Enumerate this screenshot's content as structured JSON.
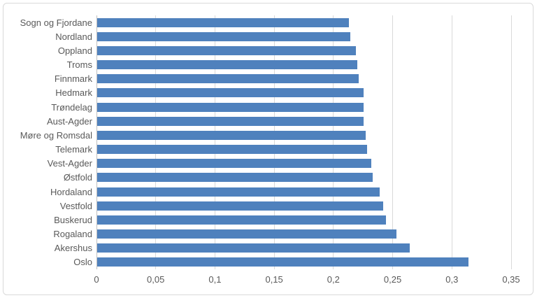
{
  "chart_data": {
    "type": "bar",
    "orientation": "horizontal",
    "title": "",
    "xlabel": "",
    "ylabel": "",
    "categories": [
      "Sogn og Fjordane",
      "Nordland",
      "Oppland",
      "Troms",
      "Finnmark",
      "Hedmark",
      "Trøndelag",
      "Aust-Agder",
      "Møre og Romsdal",
      "Telemark",
      "Vest-Agder",
      "Østfold",
      "Hordaland",
      "Vestfold",
      "Buskerud",
      "Rogaland",
      "Akershus",
      "Oslo"
    ],
    "values": [
      0.213,
      0.214,
      0.219,
      0.22,
      0.221,
      0.225,
      0.225,
      0.225,
      0.227,
      0.228,
      0.232,
      0.233,
      0.239,
      0.242,
      0.244,
      0.253,
      0.264,
      0.314
    ],
    "xlim": [
      0,
      0.35
    ],
    "x_ticks": [
      0,
      0.05,
      0.1,
      0.15,
      0.2,
      0.25,
      0.3,
      0.35
    ],
    "x_tick_labels": [
      "0",
      "0,05",
      "0,1",
      "0,15",
      "0,2",
      "0,25",
      "0,3",
      "0,35"
    ],
    "decimal_separator": ",",
    "grid": true,
    "legend": false,
    "bar_color": "#4F81BD",
    "gridline_color": "#D9D9D9",
    "axis_line_color": "#BFBFBF",
    "label_color": "#595959",
    "frame_border_color": "#D9D9D9",
    "background_color": "#FFFFFF"
  }
}
